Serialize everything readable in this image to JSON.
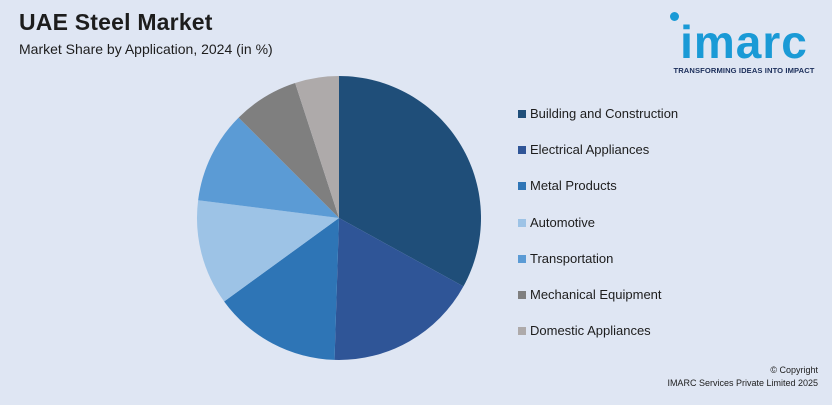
{
  "header": {
    "title": "UAE Steel Market",
    "subtitle": "Market Share by Application, 2024 (in %)"
  },
  "logo": {
    "wordmark": "imarc",
    "tagline": "TRANSFORMING IDEAS INTO IMPACT",
    "color": "#1a9ad6"
  },
  "footer": {
    "copyright_line1": "© Copyright",
    "copyright_line2": "IMARC Services Private Limited 2025"
  },
  "chart_data": {
    "type": "pie",
    "title": "UAE Steel Market",
    "subtitle": "Market Share by Application, 2024 (in %)",
    "legend_position": "right",
    "slices": [
      {
        "label": "Building and Construction",
        "value": 33,
        "color": "#1f4e79"
      },
      {
        "label": "Electrical Appliances",
        "value": 17.5,
        "color": "#2f5597"
      },
      {
        "label": "Metal Products",
        "value": 14.5,
        "color": "#2e75b6"
      },
      {
        "label": "Automotive",
        "value": 12,
        "color": "#9dc3e6"
      },
      {
        "label": "Transportation",
        "value": 10.5,
        "color": "#5b9bd5"
      },
      {
        "label": "Mechanical Equipment",
        "value": 7.5,
        "color": "#7f7f7f"
      },
      {
        "label": "Domestic Appliances",
        "value": 5,
        "color": "#aeaaaa"
      }
    ]
  }
}
